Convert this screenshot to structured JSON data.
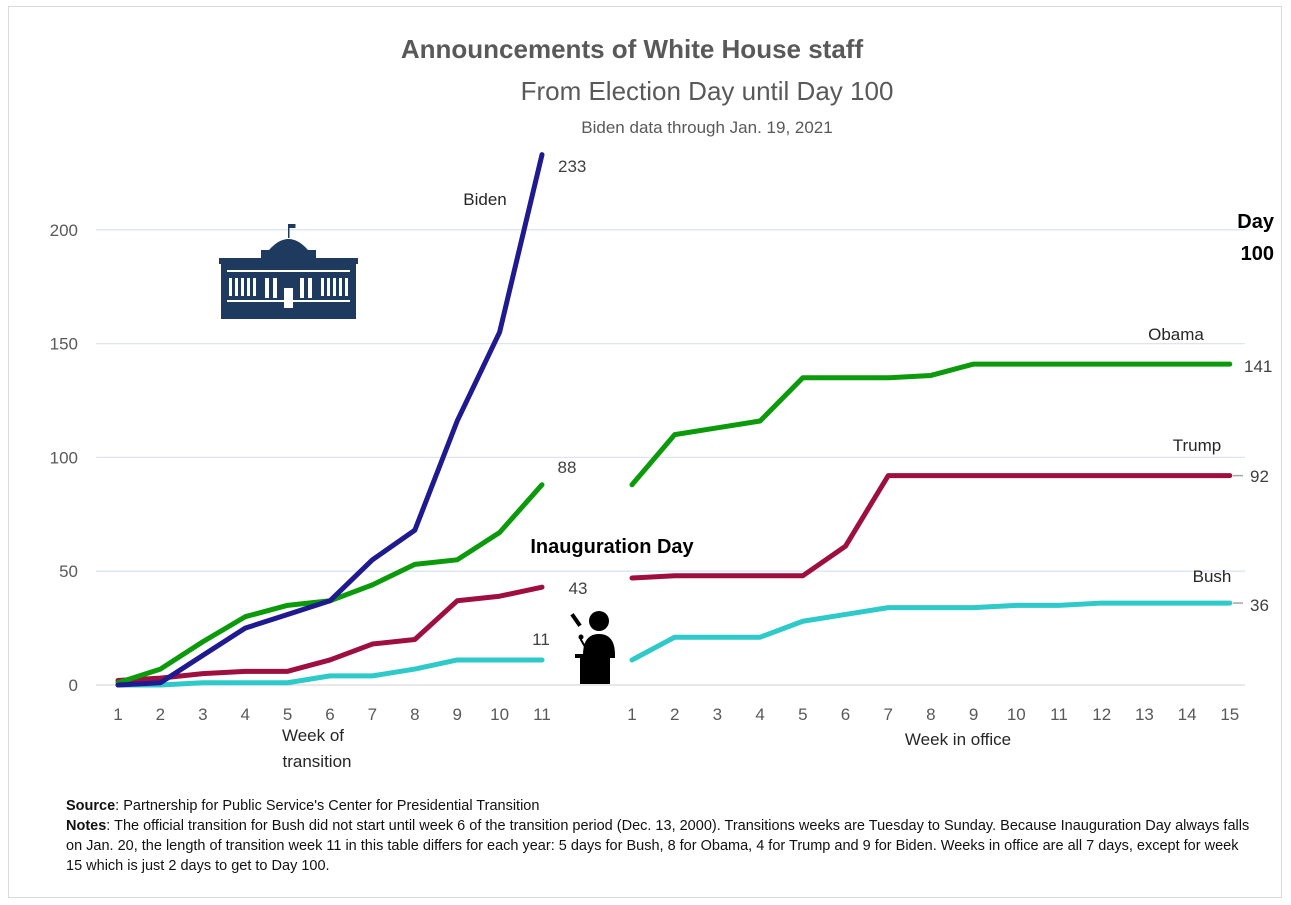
{
  "chart_data": {
    "type": "line",
    "title": "Announcements of White House staff",
    "subtitle": "From Election Day until Day 100",
    "subsubtitle": "Biden data through Jan. 19, 2021",
    "ylim": [
      0,
      233
    ],
    "y_ticks": [
      "0",
      "50",
      "100",
      "150",
      "200"
    ],
    "transition_weeks": [
      "1",
      "2",
      "3",
      "4",
      "5",
      "6",
      "7",
      "8",
      "9",
      "10",
      "11"
    ],
    "office_weeks": [
      "1",
      "2",
      "3",
      "4",
      "5",
      "6",
      "7",
      "8",
      "9",
      "10",
      "11",
      "12",
      "13",
      "14",
      "15"
    ],
    "xlabel_transition": "Week of transition",
    "xlabel_office": "Week in office",
    "inauguration_label": "Inauguration Day",
    "day100_label": "Day 100",
    "series": [
      {
        "name": "Biden",
        "color": "#1f1a8f",
        "transition": [
          0,
          1,
          13,
          25,
          31,
          37,
          55,
          68,
          116,
          155,
          233
        ],
        "office": [],
        "end_label": "233"
      },
      {
        "name": "Obama",
        "color": "#0a9a0a",
        "transition": [
          1,
          7,
          19,
          30,
          35,
          37,
          44,
          53,
          55,
          67,
          88
        ],
        "office": [
          88,
          110,
          113,
          116,
          135,
          135,
          135,
          136,
          141,
          141,
          141,
          141,
          141,
          141,
          141
        ],
        "transition_end_label": "88",
        "end_label": "141"
      },
      {
        "name": "Trump",
        "color": "#9e0f3f",
        "transition": [
          2,
          3,
          5,
          6,
          6,
          11,
          18,
          20,
          37,
          39,
          43
        ],
        "office": [
          47,
          48,
          48,
          48,
          48,
          61,
          92,
          92,
          92,
          92,
          92,
          92,
          92,
          92,
          92
        ],
        "transition_end_label": "43",
        "end_label": "92"
      },
      {
        "name": "Bush",
        "color": "#2ec9c9",
        "transition": [
          0,
          0,
          1,
          1,
          1,
          4,
          4,
          7,
          11,
          11,
          11
        ],
        "office": [
          11,
          21,
          21,
          21,
          28,
          31,
          34,
          34,
          34,
          35,
          35,
          36,
          36,
          36,
          36
        ],
        "transition_end_label": "11",
        "end_label": "36"
      }
    ]
  },
  "notes": {
    "source_label": "Source",
    "source_text": ": Partnership for Public Service's Center for Presidential Transition",
    "notes_label": "Notes",
    "notes_text": ": The official transition for Bush did not start until week 6 of the transition period (Dec. 13, 2000). Transitions weeks are Tuesday to Sunday. Because Inauguration Day always falls on Jan. 20, the length of transition week 11 in this table differs for each year: 5 days for Bush, 8 for Obama, 4 for Trump and 9 for Biden. Weeks in office are all 7 days, except for week 15 which is just 2 days to get to Day 100."
  },
  "icons": {
    "building": "white-house-icon",
    "speaker": "podium-speaker-icon",
    "building_color": "#1f3a5f"
  }
}
